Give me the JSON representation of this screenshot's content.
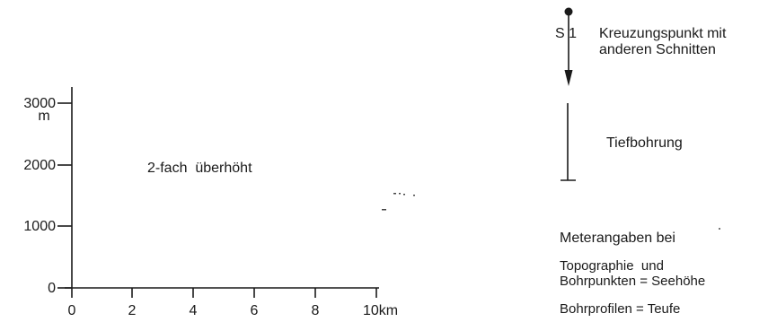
{
  "scale_diagram": {
    "y_axis": {
      "ticks": [
        {
          "value": 0,
          "label": "0"
        },
        {
          "value": 1000,
          "label": "1000"
        },
        {
          "value": 2000,
          "label": "2000"
        },
        {
          "value": 3000,
          "label": "3000"
        }
      ],
      "unit": "m"
    },
    "x_axis": {
      "ticks": [
        {
          "value": 0,
          "label": "0"
        },
        {
          "value": 2,
          "label": "2"
        },
        {
          "value": 4,
          "label": "4"
        },
        {
          "value": 6,
          "label": "6"
        },
        {
          "value": 8,
          "label": "8"
        },
        {
          "value": 10,
          "label": "10km"
        }
      ]
    },
    "exaggeration_label": "2-fach  überhöht"
  },
  "legend": {
    "crossing_point": {
      "symbol_label": "S 1",
      "text_line1": "Kreuzungspunkt mit",
      "text_line2": "anderen Schnitten"
    },
    "deep_borehole": {
      "text": "Tiefbohrung"
    },
    "meter_notes": {
      "heading": "Meterangaben bei",
      "topography_line1": "Topographie  und",
      "topography_line2": "Bohrpunkten = Seehöhe",
      "profiles": "Bohrprofilen = Teufe"
    }
  }
}
